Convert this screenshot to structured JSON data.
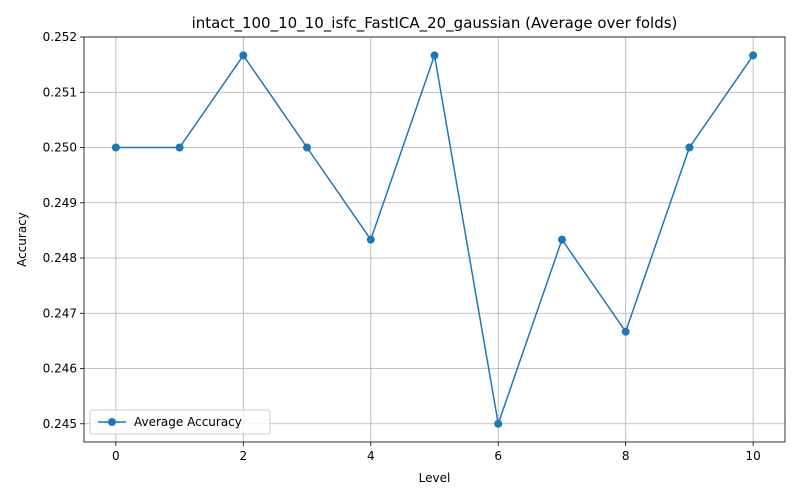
{
  "chart_data": {
    "type": "line",
    "title": "intact_100_10_10_isfc_FastICA_20_gaussian (Average over folds)",
    "xlabel": "Level",
    "ylabel": "Accuracy",
    "x": [
      0,
      1,
      2,
      3,
      4,
      5,
      6,
      7,
      8,
      9,
      10
    ],
    "series": [
      {
        "name": "Average Accuracy",
        "values": [
          0.25,
          0.25,
          0.251667,
          0.25,
          0.248333,
          0.251667,
          0.245,
          0.248333,
          0.246667,
          0.25,
          0.251667
        ],
        "color": "#1f77b4",
        "marker": "circle"
      }
    ],
    "xlim": [
      -0.5,
      10.5
    ],
    "ylim": [
      0.24467,
      0.252
    ],
    "xticks": [
      0,
      2,
      4,
      6,
      8,
      10
    ],
    "xtick_labels": [
      "0",
      "2",
      "4",
      "6",
      "8",
      "10"
    ],
    "yticks": [
      0.245,
      0.246,
      0.247,
      0.248,
      0.249,
      0.25,
      0.251,
      0.252
    ],
    "ytick_labels": [
      "0.245",
      "0.246",
      "0.247",
      "0.248",
      "0.249",
      "0.250",
      "0.251",
      "0.252"
    ],
    "grid": true,
    "legend_position": "lower-left"
  }
}
